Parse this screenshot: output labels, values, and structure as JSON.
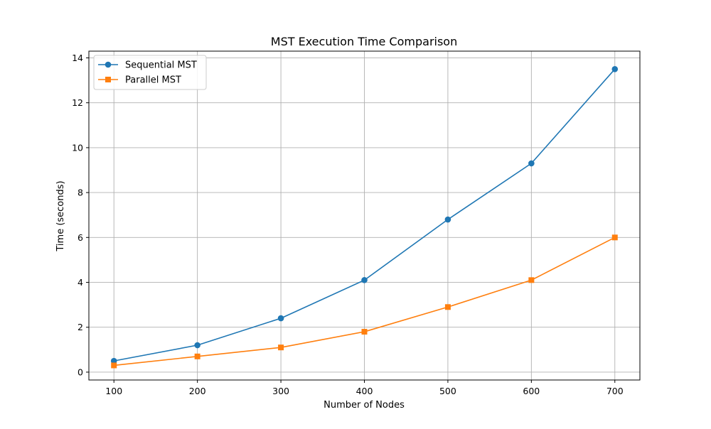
{
  "chart_data": {
    "type": "line",
    "title": "MST Execution Time Comparison",
    "xlabel": "Number of Nodes",
    "ylabel": "Time (seconds)",
    "x": [
      100,
      200,
      300,
      400,
      500,
      600,
      700
    ],
    "xlim": [
      70,
      730
    ],
    "ylim": [
      -0.35,
      14.3
    ],
    "xticks": [
      100,
      200,
      300,
      400,
      500,
      600,
      700
    ],
    "yticks": [
      0,
      2,
      4,
      6,
      8,
      10,
      12,
      14
    ],
    "grid": true,
    "legend_position": "top-left",
    "series": [
      {
        "name": "Sequential MST",
        "marker": "circle",
        "color": "#1f77b4",
        "values": [
          0.5,
          1.2,
          2.4,
          4.1,
          6.8,
          9.3,
          13.5
        ]
      },
      {
        "name": "Parallel MST",
        "marker": "square",
        "color": "#ff7f0e",
        "values": [
          0.3,
          0.7,
          1.1,
          1.8,
          2.9,
          4.1,
          6.0
        ]
      }
    ]
  }
}
